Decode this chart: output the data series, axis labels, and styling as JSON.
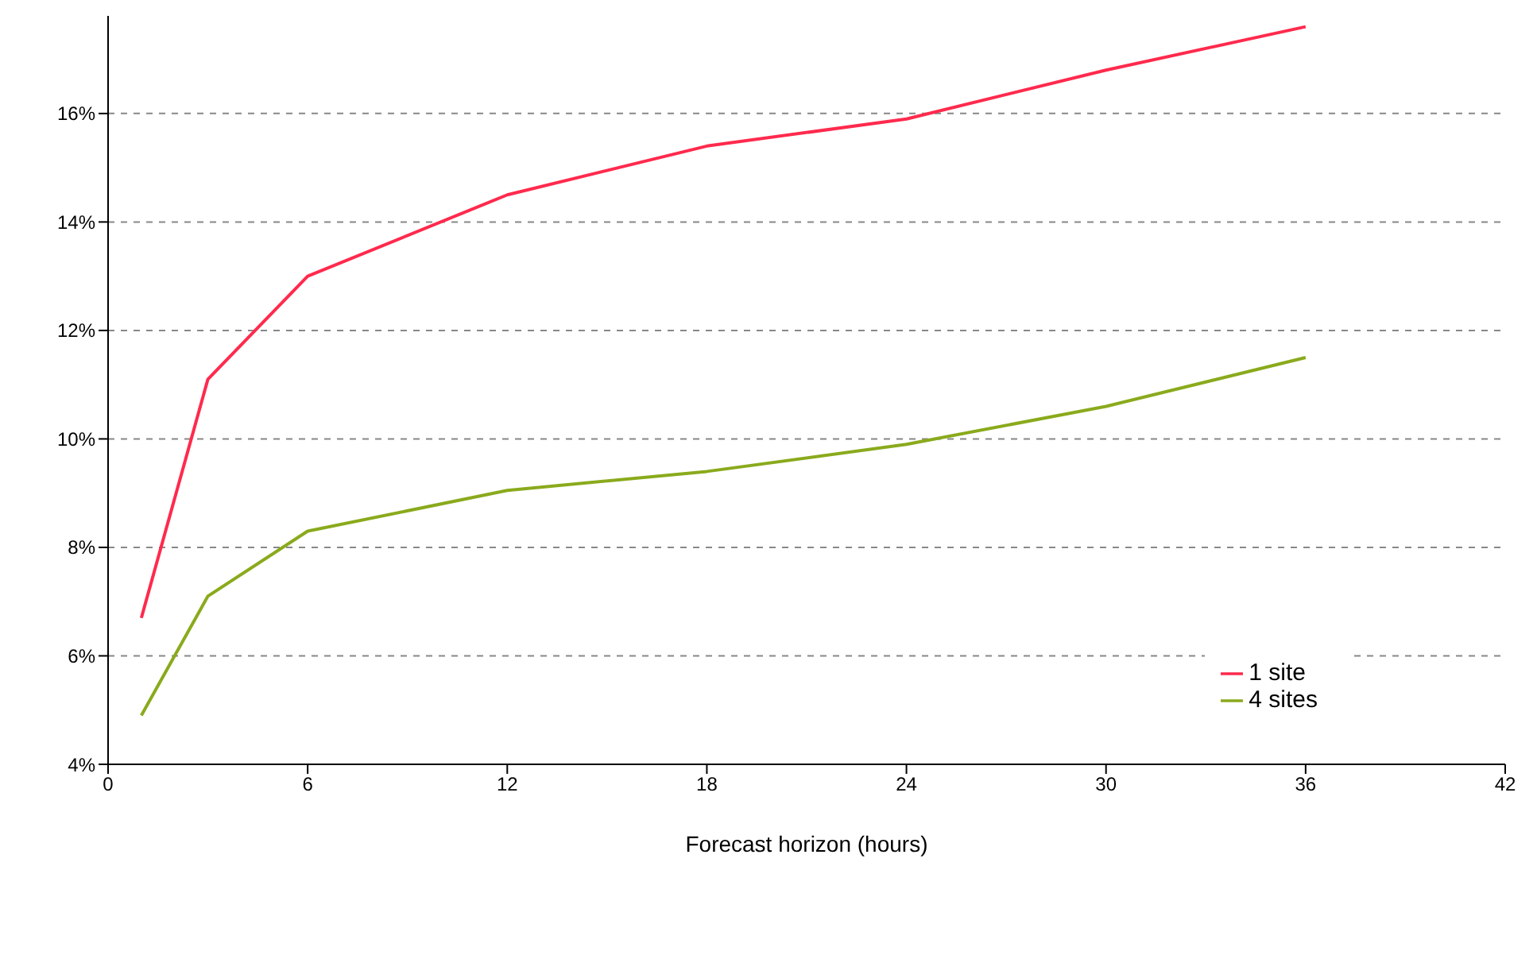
{
  "chart_data": {
    "type": "line",
    "xlabel": "Forecast horizon (hours)",
    "x": [
      1,
      3,
      6,
      12,
      18,
      24,
      30,
      36
    ],
    "series": [
      {
        "name": "1 site",
        "color": "#ff2a4d",
        "values": [
          6.7,
          11.1,
          13.0,
          14.5,
          15.4,
          15.9,
          16.8,
          17.6
        ]
      },
      {
        "name": "4 sites",
        "color": "#8aaa1c",
        "values": [
          4.9,
          7.1,
          8.3,
          9.05,
          9.4,
          9.9,
          10.6,
          11.5
        ]
      }
    ],
    "xlim": [
      0,
      42
    ],
    "xticks": [
      0,
      6,
      12,
      18,
      24,
      30,
      36,
      42
    ],
    "ylim": [
      4,
      17.8
    ],
    "yticks": [
      {
        "value": 4,
        "label": "4%"
      },
      {
        "value": 6,
        "label": "6%"
      },
      {
        "value": 8,
        "label": "8%"
      },
      {
        "value": 10,
        "label": "10%"
      },
      {
        "value": 12,
        "label": "12%"
      },
      {
        "value": 14,
        "label": "14%"
      },
      {
        "value": 16,
        "label": "16%"
      }
    ],
    "grid": "y",
    "legend": "bottom right",
    "line_style": "solid"
  }
}
